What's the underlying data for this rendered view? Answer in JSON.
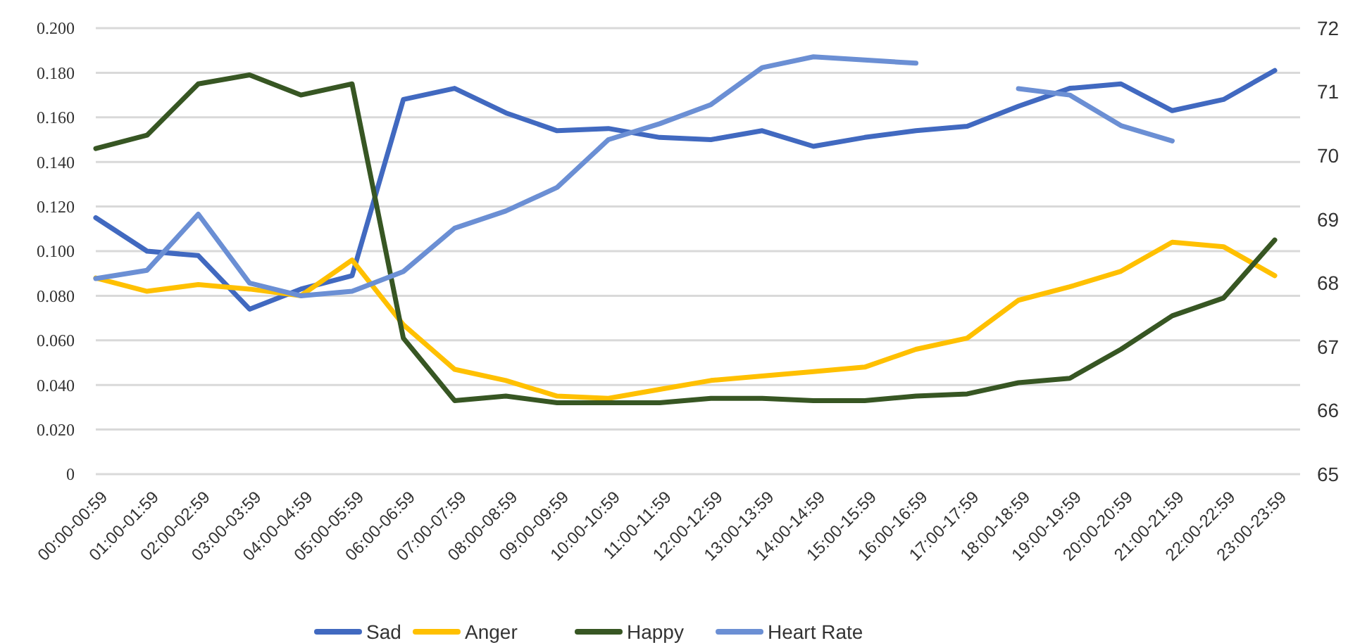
{
  "chart_data": {
    "type": "line",
    "categories": [
      "00:00-00:59",
      "01:00-01:59",
      "02:00-02:59",
      "03:00-03:59",
      "04:00-04:59",
      "05:00-05:59",
      "06:00-06:59",
      "07:00-07:59",
      "08:00-08:59",
      "09:00-09:59",
      "10:00-10:59",
      "11:00-11:59",
      "12:00-12:59",
      "13:00-13:59",
      "14:00-14:59",
      "15:00-15:59",
      "16:00-16:59",
      "17:00-17:59",
      "18:00-18:59",
      "19:00-19:59",
      "20:00-20:59",
      "21:00-21:59",
      "22:00-22:59",
      "23:00-23:59"
    ],
    "series": [
      {
        "name": "Sad",
        "color": "#4169c0",
        "values": [
          0.115,
          0.1,
          0.098,
          0.074,
          0.083,
          0.089,
          0.168,
          0.173,
          0.162,
          0.154,
          0.155,
          0.151,
          0.15,
          0.154,
          0.147,
          0.151,
          0.154,
          0.156,
          0.165,
          0.173,
          0.175,
          0.163,
          0.168,
          0.181
        ]
      },
      {
        "name": "Anger",
        "color": "#ffc000",
        "values": [
          0.088,
          0.082,
          0.085,
          0.083,
          0.08,
          0.096,
          0.067,
          0.047,
          0.042,
          0.035,
          0.034,
          0.038,
          0.042,
          0.044,
          0.046,
          0.048,
          0.056,
          0.061,
          0.078,
          0.084,
          0.091,
          0.104,
          0.102,
          0.089
        ]
      },
      {
        "name": "Happy",
        "color": "#375623",
        "values": [
          0.146,
          0.152,
          0.175,
          0.179,
          0.17,
          0.175,
          0.061,
          0.033,
          0.035,
          0.032,
          0.032,
          0.032,
          0.034,
          0.034,
          0.033,
          0.033,
          0.035,
          0.036,
          0.041,
          0.043,
          0.056,
          0.071,
          0.079,
          0.105
        ]
      },
      {
        "name": "Heart Rate",
        "color": "#6b8fd4",
        "axis": "y2",
        "values": [
          68.07,
          68.2,
          69.08,
          68.0,
          67.8,
          67.87,
          68.18,
          68.86,
          69.13,
          69.5,
          70.25,
          70.5,
          70.8,
          71.38,
          71.55,
          71.5,
          71.45,
          null,
          71.05,
          70.95,
          70.47,
          70.23,
          null,
          null
        ]
      }
    ],
    "ylim": [
      0,
      0.2
    ],
    "yticks": [
      {
        "value": 0,
        "label": "0"
      },
      {
        "value": 0.02,
        "label": "0.020"
      },
      {
        "value": 0.04,
        "label": "0.040"
      },
      {
        "value": 0.06,
        "label": "0.060"
      },
      {
        "value": 0.08,
        "label": "0.080"
      },
      {
        "value": 0.1,
        "label": "0.100"
      },
      {
        "value": 0.12,
        "label": "0.120"
      },
      {
        "value": 0.14,
        "label": "0.140"
      },
      {
        "value": 0.16,
        "label": "0.160"
      },
      {
        "value": 0.18,
        "label": "0.180"
      },
      {
        "value": 0.2,
        "label": "0.200"
      }
    ],
    "y2lim": [
      65,
      72
    ],
    "y2ticks": [
      65,
      66,
      67,
      68,
      69,
      70,
      71,
      72
    ],
    "grid": "y",
    "legend": "bottom",
    "line_style": "solid",
    "marker": "none"
  }
}
